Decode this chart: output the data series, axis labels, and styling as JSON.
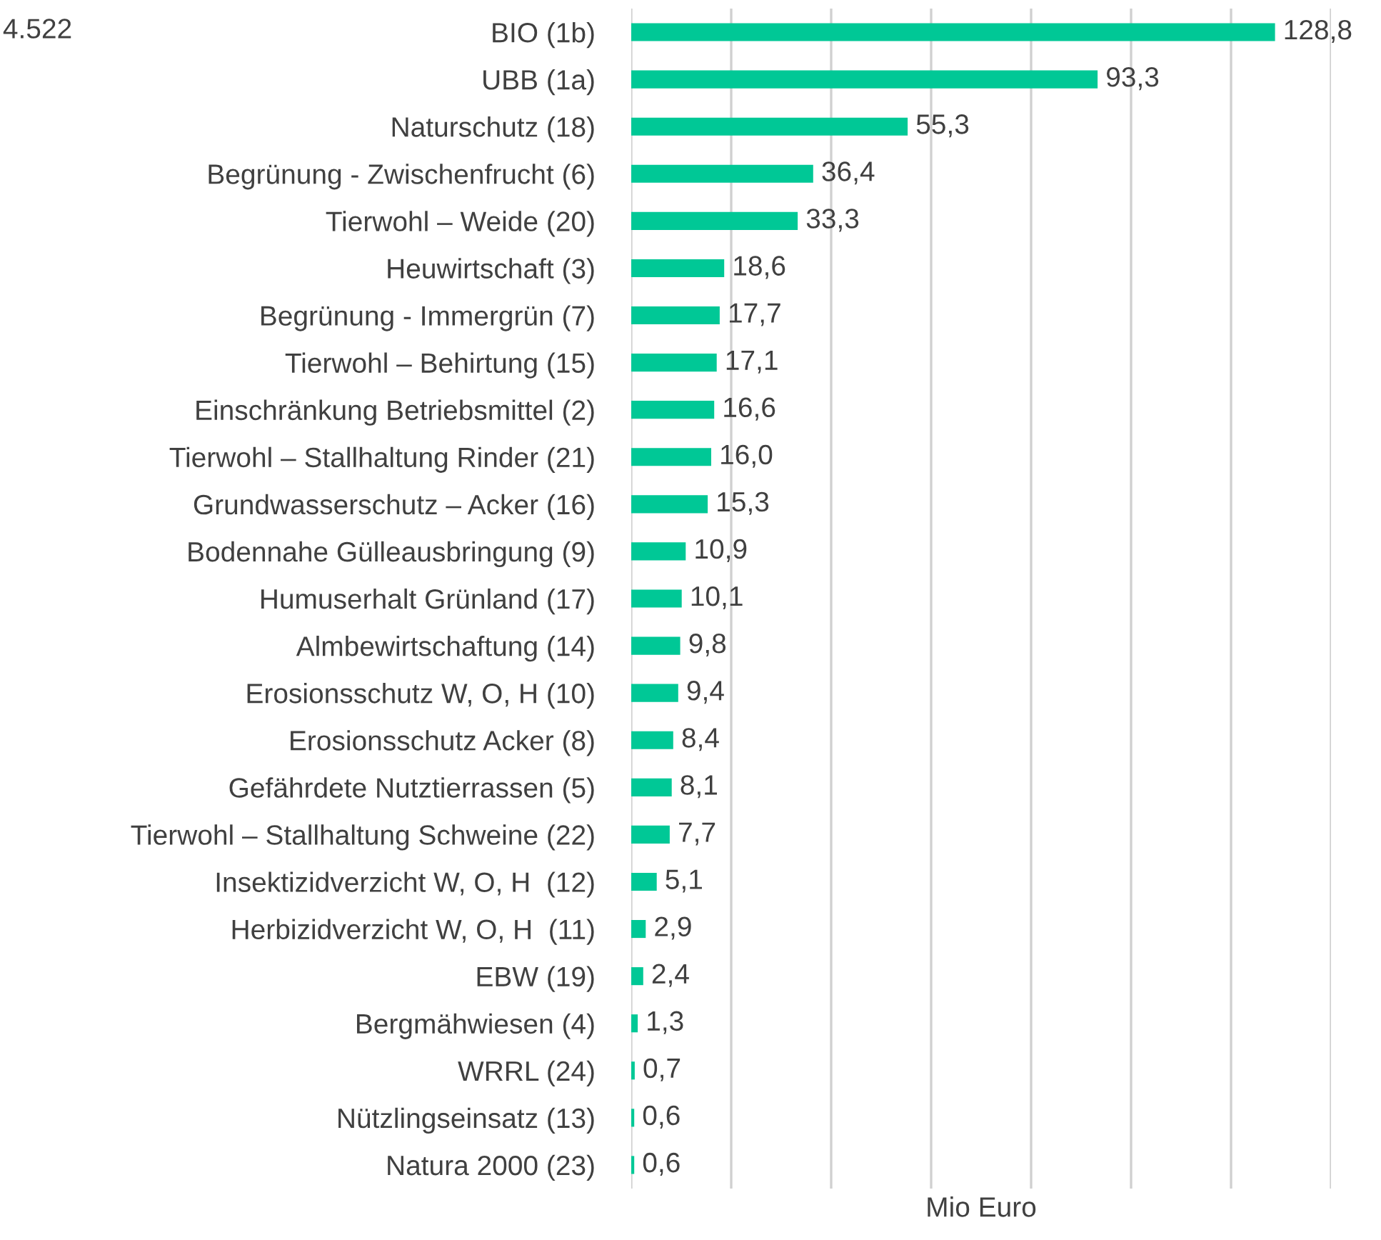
{
  "chart_data": {
    "type": "bar",
    "orientation": "horizontal",
    "xlabel": "Mio Euro",
    "annotations": [
      "4.522"
    ],
    "categories": [
      "BIO (1b)",
      "UBB (1a)",
      "Naturschutz (18)",
      "Begrünung - Zwischenfrucht (6)",
      "Tierwohl – Weide (20)",
      "Heuwirtschaft (3)",
      "Begrünung - Immergrün (7)",
      "Tierwohl – Behirtung (15)",
      "Einschränkung Betriebsmittel (2)",
      "Tierwohl – Stallhaltung Rinder (21)",
      "Grundwasserschutz – Acker (16)",
      "Bodennahe Gülleausbringung (9)",
      "Humuserhalt Grünland (17)",
      "Almbewirtschaftung (14)",
      "Erosionsschutz W, O, H (10)",
      "Erosionsschutz Acker (8)",
      "Gefährdete Nutztierrassen (5)",
      "Tierwohl – Stallhaltung Schweine (22)",
      "Insektizidverzicht W, O, H  (12)",
      "Herbizidverzicht W, O, H  (11)",
      "EBW (19)",
      "Bergmähwiesen (4)",
      "WRRL (24)",
      "Nützlingseinsatz (13)",
      "Natura 2000 (23)"
    ],
    "values": [
      128.8,
      93.3,
      55.3,
      36.4,
      33.3,
      18.6,
      17.7,
      17.1,
      16.6,
      16.0,
      15.3,
      10.9,
      10.1,
      9.8,
      9.4,
      8.4,
      8.1,
      7.7,
      5.1,
      2.9,
      2.4,
      1.3,
      0.7,
      0.6,
      0.6
    ],
    "value_labels": [
      "128,8",
      "93,3",
      "55,3",
      "36,4",
      "33,3",
      "18,6",
      "17,7",
      "17,1",
      "16,6",
      "16,0",
      "15,3",
      "10,9",
      "10,1",
      "9,8",
      "9,4",
      "8,4",
      "8,1",
      "7,7",
      "5,1",
      "2,9",
      "2,4",
      "1,3",
      "0,7",
      "0,6",
      "0,6"
    ],
    "color": "#00c896",
    "xlim": [
      0,
      140
    ],
    "xticks": [
      {
        "value": 0,
        "label": null
      },
      {
        "value": 20,
        "label": null
      },
      {
        "value": 40,
        "label": null
      },
      {
        "value": 60,
        "label": null
      },
      {
        "value": 80,
        "label": null
      },
      {
        "value": 100,
        "label": null
      },
      {
        "value": 120,
        "label": null
      },
      {
        "value": 140,
        "label": null
      }
    ],
    "grid": "x",
    "tick_labels": "y",
    "legend": false
  }
}
